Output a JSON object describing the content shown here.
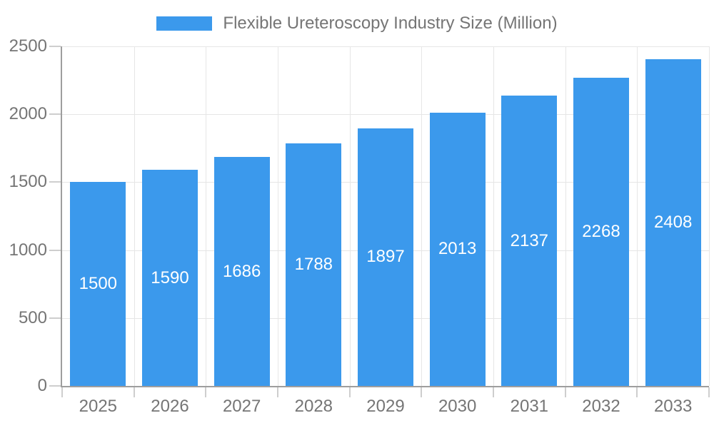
{
  "chart_data": {
    "type": "bar",
    "title": "Flexible Ureteroscopy Industry Size (Million)",
    "legend_label": "Flexible Ureteroscopy Industry Size (Million)",
    "legend_position": "top",
    "categories": [
      "2025",
      "2026",
      "2027",
      "2028",
      "2029",
      "2030",
      "2031",
      "2032",
      "2033"
    ],
    "values": [
      1500,
      1590,
      1686,
      1788,
      1897,
      2013,
      2137,
      2268,
      2408
    ],
    "xlabel": "",
    "ylabel": "",
    "ylim": [
      0,
      2500
    ],
    "yticks": [
      0,
      500,
      1000,
      1500,
      2000,
      2500
    ],
    "grid": true,
    "bar_color": "#3b99ec",
    "value_label_color": "#ffffff",
    "axis_text_color": "#757575",
    "axis_line_color": "#9e9e9e",
    "gridline_color": "#e6e6e6",
    "background_color": "#ffffff"
  }
}
